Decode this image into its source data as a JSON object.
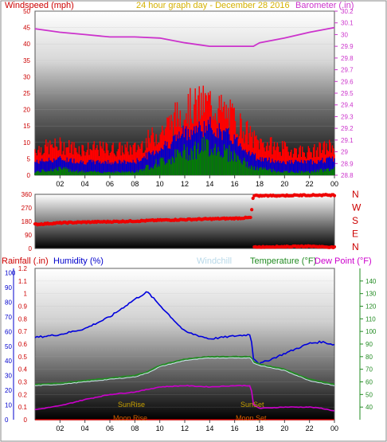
{
  "panel_top": {
    "title": "24 hour graph day - December 28 2016",
    "left_label": "Windspeed (mph)",
    "right_label": "Barometer (.in)"
  },
  "panel_bottom": {
    "rain_label": "Rainfall (.in)",
    "humidity_label": "Humidity (%)",
    "windchill_label": "Windchill",
    "temp_label": "Temperature (°F)",
    "dew_label": "Dew Point (°F)",
    "sunrise": "SunRise",
    "sunset": "SunSet",
    "moonrise": "Moon Rise",
    "moonset": "Moon Set"
  },
  "colors": {
    "wind_gust": "#ff0000",
    "wind_avg": "#0000cc",
    "wind_low": "#008000",
    "barometer": "#cc33cc",
    "direction": "#ee0000",
    "humidity": "#0000dd",
    "temperature": "#228b22",
    "dew_point": "#cc00cc",
    "windchill": "#c8e8e8",
    "rain": "#cc0000",
    "sun_moon_text": "#c8a000",
    "moon_text": "#d06000"
  },
  "chart_data": [
    {
      "type": "line",
      "title": "24 hour graph day - December 28 2016",
      "x": [
        0,
        2,
        4,
        6,
        8,
        10,
        12,
        14,
        16,
        17.5,
        18,
        20,
        22,
        24
      ],
      "x_tick_labels": [
        "02",
        "04",
        "06",
        "08",
        "10",
        "12",
        "14",
        "16",
        "18",
        "20",
        "22",
        "00"
      ],
      "ylim_left": [
        0,
        50
      ],
      "y_ticks_left": [
        0,
        5,
        10,
        15,
        20,
        25,
        30,
        35,
        40,
        45,
        50
      ],
      "ylim_right": [
        28.8,
        30.2
      ],
      "y_ticks_right": [
        "28.8",
        "28.9",
        "29",
        "29.1",
        "29.2",
        "29.3",
        "29.4",
        "29.5",
        "29.6",
        "29.7",
        "29.8",
        "29.9",
        "30",
        "30.1",
        "30.2"
      ],
      "series": [
        {
          "name": "Windspeed gust",
          "axis": "left",
          "values": [
            8,
            9,
            8,
            8,
            8,
            13,
            20,
            22,
            17,
            11,
            10,
            8,
            7,
            9
          ]
        },
        {
          "name": "Windspeed",
          "axis": "left",
          "values": [
            4,
            5,
            4,
            4,
            4,
            8,
            13,
            15,
            11,
            6,
            5,
            4,
            4,
            5
          ]
        },
        {
          "name": "Windspeed low",
          "axis": "left",
          "values": [
            1,
            2,
            1,
            1,
            1,
            4,
            7,
            9,
            6,
            2,
            2,
            1,
            1,
            2
          ]
        },
        {
          "name": "Barometer",
          "axis": "right",
          "values": [
            30.05,
            30.02,
            30.0,
            29.98,
            29.98,
            29.97,
            29.93,
            29.9,
            29.9,
            29.9,
            29.93,
            29.97,
            30.02,
            30.06
          ]
        }
      ]
    },
    {
      "type": "scatter",
      "title": "Wind direction",
      "x": [
        0,
        2,
        4,
        6,
        8,
        10,
        12,
        14,
        16,
        17.3,
        17.5,
        20,
        22,
        24
      ],
      "ylim": [
        0,
        360
      ],
      "y_ticks": [
        0,
        90,
        180,
        270,
        360
      ],
      "compass_labels": [
        "N",
        "W",
        "S",
        "E",
        "N"
      ],
      "values": [
        160,
        170,
        175,
        178,
        182,
        188,
        192,
        196,
        200,
        205,
        350,
        352,
        355,
        355
      ],
      "values_low": [
        null,
        null,
        null,
        null,
        null,
        null,
        null,
        null,
        null,
        null,
        10,
        12,
        15,
        8
      ]
    },
    {
      "type": "line",
      "title": "",
      "x": [
        0,
        2,
        4,
        6,
        8,
        9,
        10,
        12,
        14,
        16,
        17.3,
        17.5,
        18,
        20,
        22,
        23,
        24
      ],
      "x_tick_labels": [
        "02",
        "04",
        "06",
        "08",
        "10",
        "12",
        "14",
        "16",
        "18",
        "20",
        "22",
        "00"
      ],
      "ylim_left": [
        0,
        1.2
      ],
      "y_ticks_left": [
        0,
        0.1,
        0.2,
        0.3,
        0.4,
        0.5,
        0.6,
        0.7,
        0.8,
        0.9,
        1,
        1.1,
        1.2
      ],
      "y_ticks_left_outer": [
        0,
        10,
        20,
        30,
        40,
        50,
        60,
        70,
        80,
        90,
        100
      ],
      "ylim_right": [
        30,
        150
      ],
      "y_ticks_right": [
        40,
        50,
        60,
        70,
        80,
        90,
        100,
        110,
        120,
        130,
        140
      ],
      "series": [
        {
          "name": "Humidity (%)",
          "axis": "outer",
          "values": [
            56,
            58,
            62,
            70,
            82,
            87,
            78,
            60,
            55,
            57,
            58,
            42,
            38,
            45,
            52,
            53,
            51
          ]
        },
        {
          "name": "Temperature (°F)",
          "axis": "right",
          "values": [
            58,
            59,
            61,
            63,
            65,
            68,
            73,
            78,
            80,
            80,
            80,
            76,
            74,
            70,
            62,
            60,
            58
          ]
        },
        {
          "name": "Dew Point (°F)",
          "axis": "right",
          "values": [
            38,
            41,
            46,
            50,
            52,
            54,
            56,
            57,
            56,
            57,
            57,
            42,
            39,
            40,
            40,
            39,
            37
          ]
        },
        {
          "name": "Windchill",
          "axis": "right",
          "values": [
            57,
            58,
            60,
            62,
            64,
            67,
            72,
            77,
            79,
            79,
            79,
            75,
            73,
            69,
            61,
            59,
            57
          ]
        },
        {
          "name": "Rainfall (.in)",
          "axis": "left",
          "values": [
            0,
            0,
            0,
            0,
            0,
            0,
            0,
            0,
            0,
            0,
            0,
            0,
            0,
            0,
            0,
            0,
            0
          ]
        }
      ]
    }
  ]
}
